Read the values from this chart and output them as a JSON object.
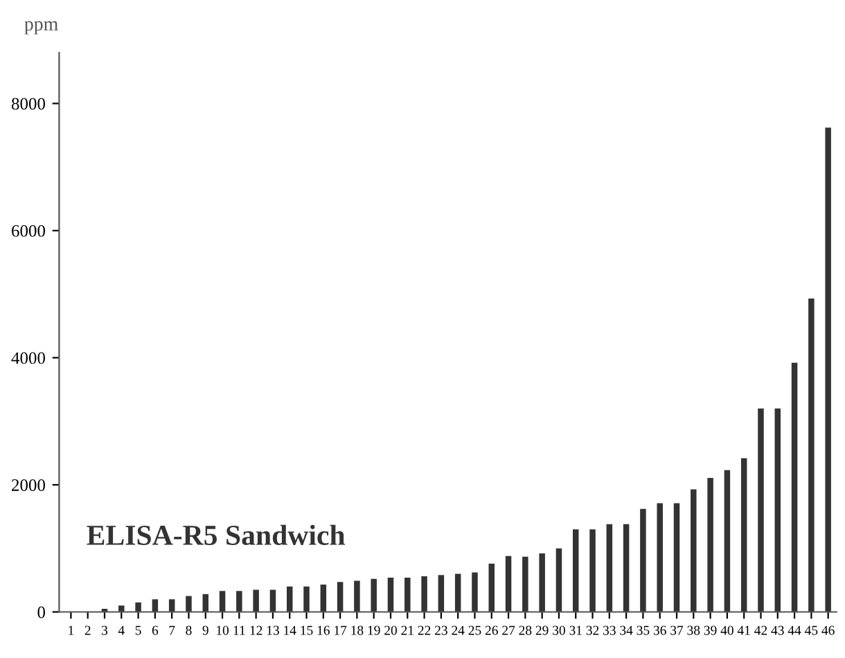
{
  "chart_data": {
    "type": "bar",
    "ylabel": "ppm",
    "annotations": [
      "ELISA-R5 Sandwich"
    ],
    "categories": [
      "1",
      "2",
      "3",
      "4",
      "5",
      "6",
      "7",
      "8",
      "9",
      "10",
      "11",
      "12",
      "13",
      "14",
      "15",
      "16",
      "17",
      "18",
      "19",
      "20",
      "21",
      "22",
      "23",
      "24",
      "25",
      "26",
      "27",
      "28",
      "29",
      "30",
      "31",
      "32",
      "33",
      "34",
      "35",
      "36",
      "37",
      "38",
      "39",
      "40",
      "41",
      "42",
      "43",
      "44",
      "45",
      "46"
    ],
    "values": [
      0,
      0,
      50,
      100,
      150,
      200,
      200,
      250,
      280,
      330,
      330,
      350,
      350,
      400,
      400,
      430,
      470,
      490,
      520,
      540,
      540,
      560,
      580,
      600,
      620,
      760,
      880,
      870,
      920,
      1000,
      1300,
      1300,
      1380,
      1380,
      1620,
      1710,
      1710,
      1930,
      2110,
      2230,
      2420,
      3200,
      3200,
      3920,
      4930,
      7620
    ],
    "color": "#333333",
    "ylim": [
      0,
      8800
    ],
    "yticks": [
      0,
      2000,
      4000,
      6000,
      8000
    ],
    "grid": false
  }
}
